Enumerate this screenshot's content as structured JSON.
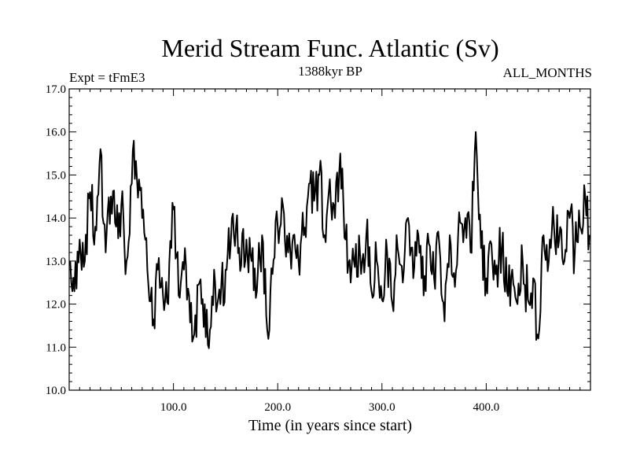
{
  "chart_data": {
    "type": "line",
    "title": "Merid Stream Func. Atlantic (Sv)",
    "subtitle_left": "Expt = tFmE3",
    "subtitle_center": "1388kyr BP",
    "subtitle_right": "ALL_MONTHS",
    "xlabel": "Time (in years since start)",
    "ylabel": "",
    "xlim": [
      0,
      500
    ],
    "ylim": [
      10.0,
      17.0
    ],
    "x_ticks": [
      100,
      200,
      300,
      400
    ],
    "x_tick_labels": [
      "100.0",
      "200.0",
      "300.0",
      "400.0"
    ],
    "y_ticks": [
      10,
      11,
      12,
      13,
      14,
      15,
      16,
      17
    ],
    "y_tick_labels": [
      "10.0",
      "11.0",
      "12.0",
      "13.0",
      "14.0",
      "15.0",
      "16.0",
      "17.0"
    ],
    "series": [
      {
        "name": "Merid Stream Func.",
        "x": [
          1,
          5,
          10,
          15,
          20,
          25,
          30,
          35,
          40,
          45,
          50,
          55,
          60,
          62,
          65,
          70,
          75,
          80,
          85,
          90,
          95,
          100,
          105,
          110,
          115,
          120,
          125,
          130,
          135,
          140,
          145,
          150,
          155,
          160,
          165,
          170,
          175,
          180,
          185,
          190,
          195,
          200,
          205,
          210,
          215,
          220,
          225,
          230,
          235,
          240,
          245,
          250,
          255,
          260,
          265,
          270,
          275,
          280,
          285,
          290,
          295,
          300,
          305,
          310,
          315,
          320,
          325,
          330,
          335,
          340,
          345,
          350,
          355,
          360,
          365,
          370,
          375,
          380,
          385,
          390,
          395,
          400,
          405,
          410,
          415,
          420,
          425,
          430,
          435,
          440,
          445,
          450,
          455,
          460,
          465,
          470,
          475,
          480,
          485,
          490,
          495,
          499
        ],
        "y": [
          13.0,
          12.3,
          13.5,
          13.0,
          14.6,
          13.8,
          15.6,
          13.2,
          14.5,
          13.8,
          14.3,
          13.0,
          14.8,
          15.8,
          14.9,
          14.0,
          12.8,
          11.5,
          12.8,
          12.2,
          12.0,
          14.2,
          12.2,
          12.8,
          12.2,
          11.3,
          12.5,
          12.0,
          11.4,
          12.5,
          12.0,
          12.8,
          13.4,
          13.8,
          12.9,
          13.5,
          13.0,
          12.3,
          13.6,
          11.4,
          12.7,
          13.8,
          14.3,
          13.2,
          13.6,
          13.0,
          13.6,
          14.8,
          14.4,
          15.0,
          13.6,
          14.9,
          14.0,
          15.5,
          13.5,
          12.5,
          13.4,
          12.7,
          13.6,
          12.3,
          13.0,
          12.1,
          13.2,
          12.0,
          13.3,
          12.5,
          14.0,
          12.6,
          13.6,
          12.2,
          13.4,
          12.6,
          13.4,
          11.6,
          13.6,
          12.4,
          13.9,
          14.0,
          13.2,
          16.0,
          13.3,
          12.6,
          13.4,
          12.9,
          13.3,
          12.3,
          12.8,
          12.0,
          13.0,
          12.1,
          12.6,
          11.2,
          13.6,
          13.0,
          13.8,
          13.5,
          13.0,
          14.0,
          13.2,
          13.8,
          14.5,
          13.6
        ]
      }
    ]
  }
}
